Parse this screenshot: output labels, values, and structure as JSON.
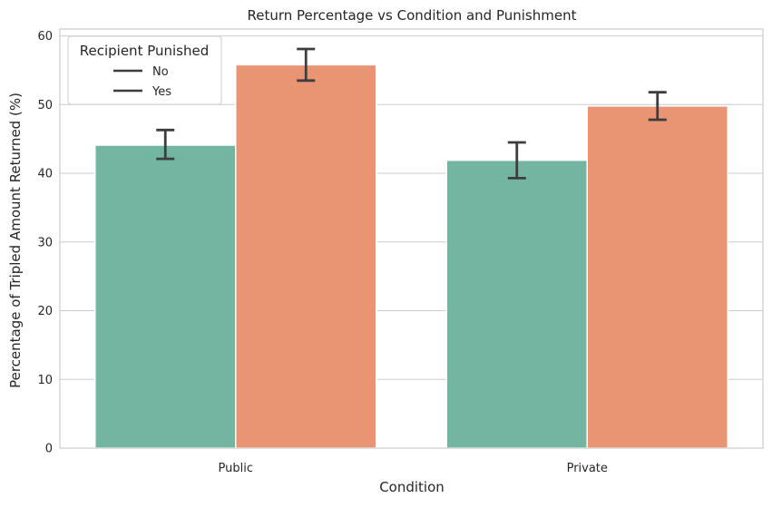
{
  "chart_data": {
    "type": "bar",
    "title": "Return Percentage vs Condition and Punishment",
    "xlabel": "Condition",
    "ylabel": "Percentage of Tripled Amount Returned (%)",
    "categories": [
      "Public",
      "Private"
    ],
    "ylim": [
      0,
      61
    ],
    "yticks": [
      0,
      10,
      20,
      30,
      40,
      50,
      60
    ],
    "grid": "y",
    "legend": {
      "title": "Recipient Punished",
      "placement": "top-left",
      "entries": [
        "No",
        "Yes"
      ]
    },
    "series": [
      {
        "name": "No",
        "color": "#72b5a0",
        "values": [
          44.1,
          41.9
        ],
        "error_low": [
          42.1,
          39.3
        ],
        "error_high": [
          46.3,
          44.5
        ]
      },
      {
        "name": "Yes",
        "color": "#e99573",
        "values": [
          55.8,
          49.8
        ],
        "error_low": [
          53.5,
          47.8
        ],
        "error_high": [
          58.1,
          51.8
        ]
      }
    ],
    "error_bar_color": "#3d3d3d",
    "axis_color": "#cccccc",
    "grid_color": "#cccccc"
  }
}
